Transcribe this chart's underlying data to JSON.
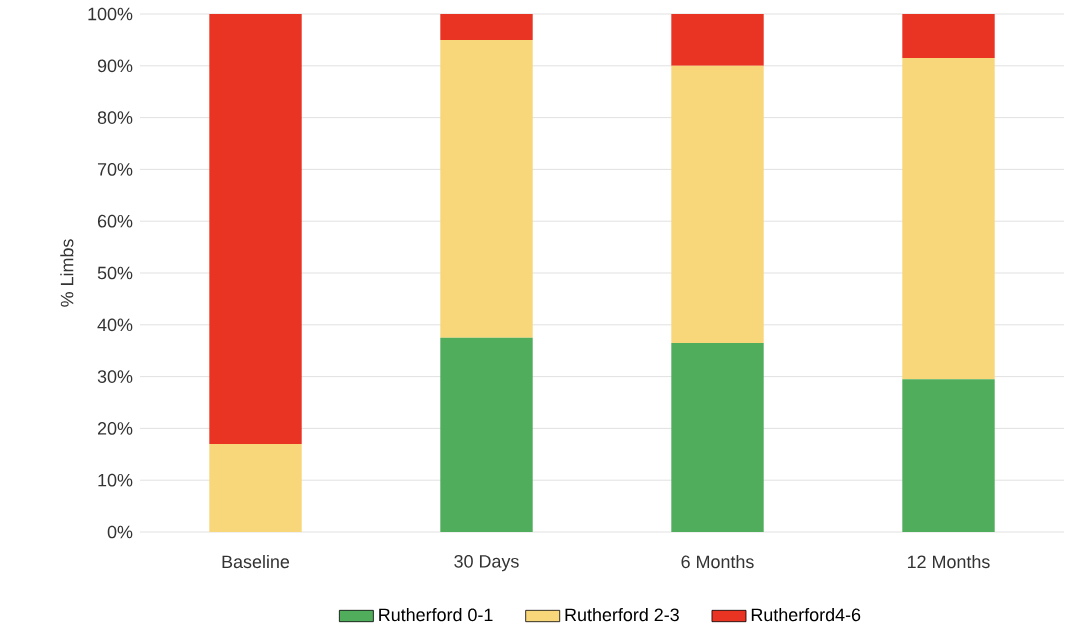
{
  "chart_data": {
    "type": "bar",
    "stacked": true,
    "ylabel": "% Limbs",
    "categories": [
      "Baseline",
      "30 Days",
      "6 Months",
      "12 Months"
    ],
    "series": [
      {
        "name": "Rutherford 0-1",
        "color": "#4fad5b",
        "values": [
          0,
          37.5,
          36.5,
          29.5
        ]
      },
      {
        "name": "Rutherford 2-3",
        "color": "#f8d77a",
        "values": [
          17,
          57.5,
          53.5,
          62
        ]
      },
      {
        "name": "Rutherford4-6",
        "color": "#e93323",
        "values": [
          83,
          5,
          10,
          8.5
        ]
      }
    ],
    "ylim": [
      0,
      100
    ],
    "yticks": [
      {
        "value": 0,
        "label": "0%"
      },
      {
        "value": 10,
        "label": "10%"
      },
      {
        "value": 20,
        "label": "20%"
      },
      {
        "value": 30,
        "label": "30%"
      },
      {
        "value": 40,
        "label": "40%"
      },
      {
        "value": 50,
        "label": "50%"
      },
      {
        "value": 60,
        "label": "60%"
      },
      {
        "value": 70,
        "label": "70%"
      },
      {
        "value": 80,
        "label": "80%"
      },
      {
        "value": 90,
        "label": "90%"
      },
      {
        "value": 100,
        "label": "100%"
      }
    ],
    "grid": "y",
    "legend": "bottom"
  }
}
